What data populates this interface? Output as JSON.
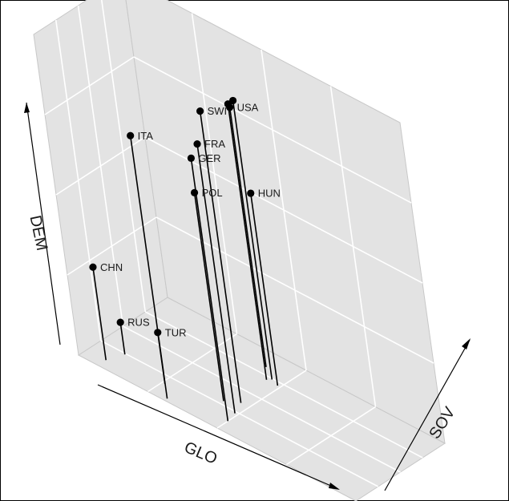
{
  "chart_data": {
    "type": "scatter",
    "dimensions": 3,
    "xlabel": "GLO",
    "ylabel": "SOV",
    "zlabel": "DEM",
    "grid": true,
    "colors": {
      "panel": "#e3e3e3",
      "grid": "#ffffff",
      "point": "#000000",
      "stem": "#000000",
      "edge": "#c8c8c8"
    },
    "points": [
      {
        "label": "ITA",
        "x": 3.1,
        "y": 0.3,
        "z": 8.2
      },
      {
        "label": "SWI",
        "x": 4.7,
        "y": 3.6,
        "z": 9.1
      },
      {
        "label": "FRA",
        "x": 4.9,
        "y": 2.3,
        "z": 8.4
      },
      {
        "label": "GER",
        "x": 5.0,
        "y": 1.2,
        "z": 8.2
      },
      {
        "label": "USA",
        "x": 4.1,
        "y": 8.3,
        "z": 8.1
      },
      {
        "label": "POL",
        "x": 4.3,
        "y": 2.9,
        "z": 6.5
      },
      {
        "label": "HUN",
        "x": 4.9,
        "y": 7.1,
        "z": 6.0
      },
      {
        "label": "CHN",
        "x": 0.7,
        "y": 0.9,
        "z": 2.9
      },
      {
        "label": "RUS",
        "x": 0.9,
        "y": 2.4,
        "z": 1.0
      },
      {
        "label": "TUR",
        "x": 2.6,
        "y": 1.6,
        "z": 1.6
      },
      {
        "label": "",
        "x": 4.5,
        "y": 7.1,
        "z": 8.6
      },
      {
        "label": "",
        "x": 4.6,
        "y": 7.4,
        "z": 8.7
      }
    ]
  }
}
